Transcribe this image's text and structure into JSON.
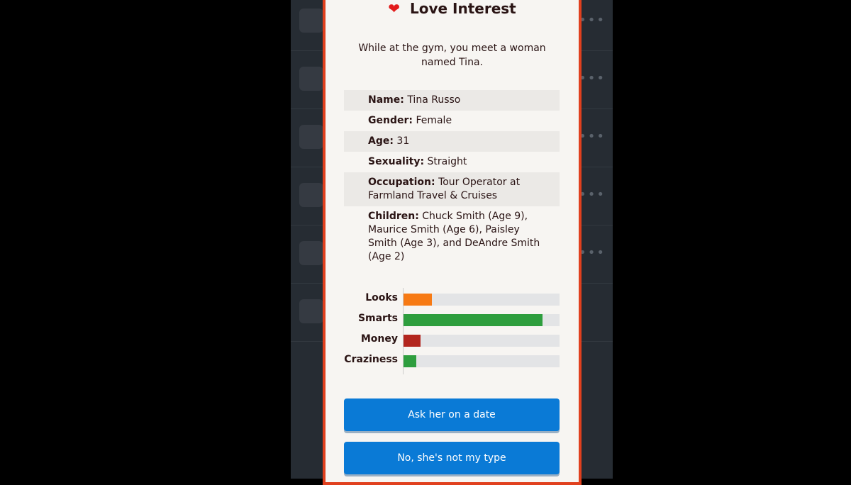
{
  "modal": {
    "icon": "heart-icon",
    "title": "Love Interest",
    "description": "While at the gym, you meet a woman named Tina.",
    "info": [
      {
        "label": "Name:",
        "value": "Tina Russo"
      },
      {
        "label": "Gender:",
        "value": "Female"
      },
      {
        "label": "Age:",
        "value": "31"
      },
      {
        "label": "Sexuality:",
        "value": "Straight"
      },
      {
        "label": "Occupation:",
        "value": "Tour Operator at Farmland Travel & Cruises"
      },
      {
        "label": "Children:",
        "value": "Chuck Smith (Age 9), Maurice Smith (Age 6), Paisley Smith (Age 3), and DeAndre Smith (Age 2)"
      }
    ],
    "stats": [
      {
        "label": "Looks",
        "percent": 18,
        "color": "#f77a14"
      },
      {
        "label": "Smarts",
        "percent": 89,
        "color": "#2e9e3e"
      },
      {
        "label": "Money",
        "percent": 11,
        "color": "#b3261e"
      },
      {
        "label": "Craziness",
        "percent": 8,
        "color": "#2e9e3e"
      }
    ],
    "buttons": {
      "accept": "Ask her on a date",
      "decline": "No, she's not my type"
    }
  },
  "colors": {
    "accent": "#0a7ad6",
    "border": "#e0401e"
  }
}
